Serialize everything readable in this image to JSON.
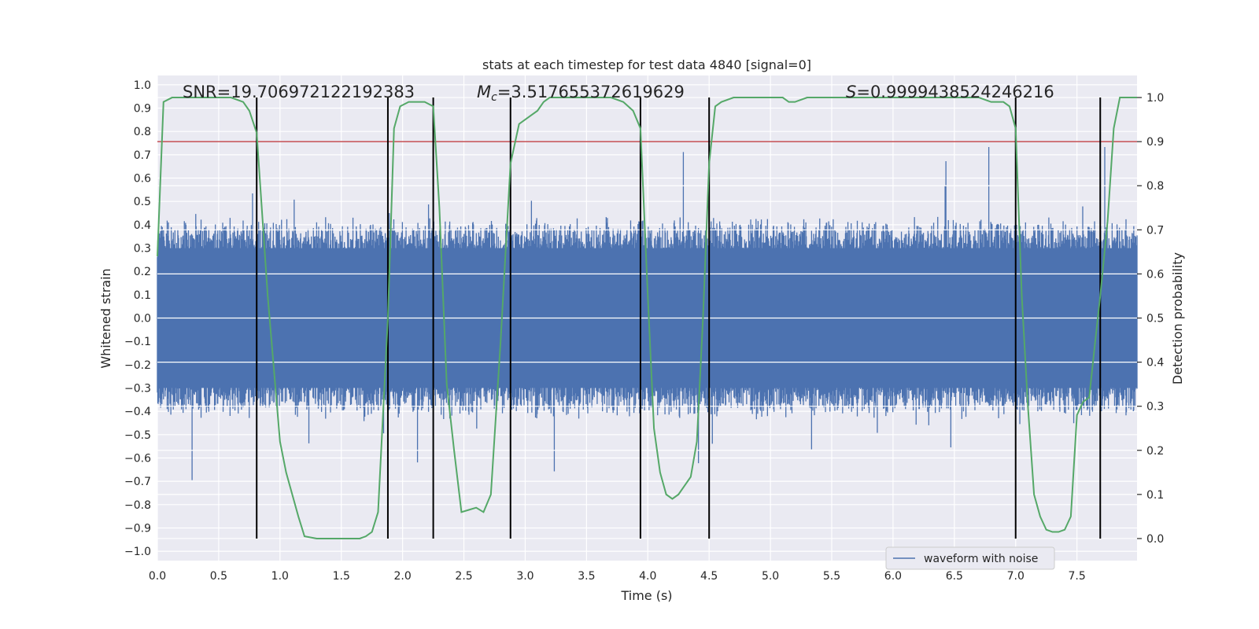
{
  "chart_data": {
    "type": "line",
    "title": "stats at each timestep for test data 4840 [signal=0]",
    "xlabel": "Time (s)",
    "ylabel_left": "Whitened strain",
    "ylabel_right": "Detection probability",
    "xlim": [
      0,
      7.99
    ],
    "ylim_left": [
      -1.04,
      1.04
    ],
    "ylim_right": [
      -0.05,
      1.05
    ],
    "x_ticks": [
      "0.0",
      "0.5",
      "1.0",
      "1.5",
      "2.0",
      "2.5",
      "3.0",
      "3.5",
      "4.0",
      "4.5",
      "5.0",
      "5.5",
      "6.0",
      "6.5",
      "7.0",
      "7.5"
    ],
    "left_ticks": [
      "1.0",
      "0.9",
      "0.8",
      "0.7",
      "0.6",
      "0.5",
      "0.4",
      "0.3",
      "0.2",
      "0.1",
      "0.0",
      "−0.1",
      "−0.2",
      "−0.3",
      "−0.4",
      "−0.5",
      "−0.6",
      "−0.7",
      "−0.8",
      "−0.9",
      "−1.0"
    ],
    "right_ticks": [
      "1.0",
      "0.9",
      "0.8",
      "0.7",
      "0.6",
      "0.5",
      "0.4",
      "0.3",
      "0.2",
      "0.1",
      "0.0"
    ],
    "grid": true,
    "legend_placement": "lower-right",
    "annotations": {
      "snr": "SNR=19.706972122192383",
      "mc_symbol": "M",
      "mc_sub": "c",
      "mc_value": "=3.517655372619629",
      "s_symbol": "S",
      "s_value": "=0.9999438524246216"
    },
    "threshold_right": 0.9,
    "segment_boundaries": [
      0.81,
      1.88,
      2.25,
      2.88,
      3.94,
      4.5,
      7.0,
      7.69
    ],
    "series": [
      {
        "name": "waveform with noise",
        "axis": "left",
        "style": "noise",
        "color": "#4c72b0",
        "amplitude_typical": 0.35,
        "amplitude_peak_max": 0.8,
        "amplitude_trough_min": -0.94
      },
      {
        "axis": "right",
        "style": "line",
        "color": "#55a868",
        "x": [
          0.0,
          0.05,
          0.12,
          0.2,
          0.3,
          0.4,
          0.5,
          0.6,
          0.7,
          0.75,
          0.81,
          0.9,
          1.0,
          1.05,
          1.1,
          1.15,
          1.2,
          1.3,
          1.4,
          1.5,
          1.6,
          1.65,
          1.7,
          1.75,
          1.8,
          1.88,
          1.93,
          1.98,
          2.05,
          2.1,
          2.18,
          2.25,
          2.3,
          2.36,
          2.42,
          2.48,
          2.54,
          2.6,
          2.66,
          2.72,
          2.8,
          2.88,
          2.95,
          3.0,
          3.05,
          3.1,
          3.15,
          3.2,
          3.3,
          3.4,
          3.5,
          3.6,
          3.7,
          3.8,
          3.88,
          3.94,
          4.0,
          4.05,
          4.1,
          4.15,
          4.2,
          4.25,
          4.3,
          4.35,
          4.4,
          4.45,
          4.5,
          4.55,
          4.6,
          4.7,
          4.8,
          4.9,
          5.0,
          5.1,
          5.15,
          5.2,
          5.3,
          5.4,
          5.5,
          5.6,
          5.7,
          5.8,
          5.9,
          6.0,
          6.1,
          6.2,
          6.3,
          6.4,
          6.5,
          6.6,
          6.7,
          6.8,
          6.85,
          6.9,
          6.95,
          7.0,
          7.05,
          7.1,
          7.15,
          7.2,
          7.25,
          7.3,
          7.35,
          7.4,
          7.45,
          7.5,
          7.55,
          7.6,
          7.65,
          7.69,
          7.75,
          7.8,
          7.85,
          7.9,
          7.99
        ],
        "y": [
          0.64,
          0.99,
          1.0,
          1.0,
          1.0,
          1.0,
          1.0,
          1.0,
          0.99,
          0.97,
          0.92,
          0.55,
          0.22,
          0.15,
          0.1,
          0.05,
          0.005,
          0.0,
          0.0,
          0.0,
          0.0,
          0.0,
          0.005,
          0.015,
          0.06,
          0.5,
          0.93,
          0.98,
          0.99,
          0.99,
          0.99,
          0.98,
          0.75,
          0.35,
          0.2,
          0.06,
          0.065,
          0.07,
          0.06,
          0.1,
          0.45,
          0.85,
          0.94,
          0.95,
          0.96,
          0.97,
          0.99,
          1.0,
          1.0,
          1.0,
          1.0,
          1.0,
          1.0,
          0.99,
          0.97,
          0.93,
          0.55,
          0.25,
          0.15,
          0.1,
          0.09,
          0.1,
          0.12,
          0.14,
          0.22,
          0.5,
          0.85,
          0.98,
          0.99,
          1.0,
          1.0,
          1.0,
          1.0,
          1.0,
          0.99,
          0.99,
          1.0,
          1.0,
          1.0,
          1.0,
          1.0,
          1.0,
          1.0,
          1.0,
          1.0,
          1.0,
          1.0,
          1.0,
          1.0,
          1.0,
          1.0,
          0.99,
          0.99,
          0.99,
          0.98,
          0.93,
          0.55,
          0.3,
          0.1,
          0.05,
          0.02,
          0.015,
          0.015,
          0.02,
          0.05,
          0.28,
          0.31,
          0.32,
          0.45,
          0.55,
          0.72,
          0.93,
          1.0,
          1.0,
          1.0
        ]
      }
    ]
  }
}
